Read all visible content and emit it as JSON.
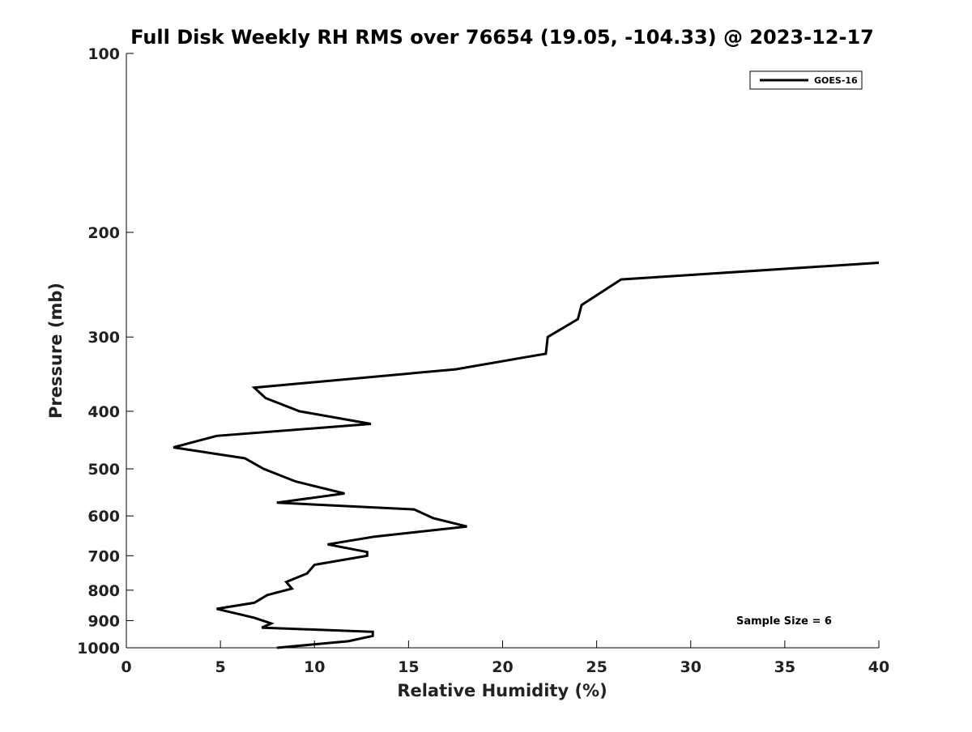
{
  "chart_data": {
    "type": "line",
    "title": "Full Disk Weekly RH RMS over 76654 (19.05, -104.33) @ 2023-12-17",
    "xlabel": "Relative Humidity (%)",
    "ylabel": "Pressure (mb)",
    "xlim": [
      0,
      40
    ],
    "ylim": [
      100,
      1000
    ],
    "y_scale": "log",
    "y_reversed": true,
    "grid": false,
    "legend_position": "top-right",
    "x_ticks": [
      0,
      5,
      10,
      15,
      20,
      25,
      30,
      35,
      40
    ],
    "y_ticks": [
      100,
      200,
      300,
      400,
      500,
      600,
      700,
      800,
      900,
      1000
    ],
    "series": [
      {
        "name": "GOES-16",
        "color": "#000000",
        "points": [
          {
            "x": 40.0,
            "y": 225
          },
          {
            "x": 26.3,
            "y": 240
          },
          {
            "x": 24.2,
            "y": 265
          },
          {
            "x": 24.0,
            "y": 280
          },
          {
            "x": 22.4,
            "y": 300
          },
          {
            "x": 22.3,
            "y": 320
          },
          {
            "x": 17.5,
            "y": 340
          },
          {
            "x": 6.8,
            "y": 365
          },
          {
            "x": 7.4,
            "y": 380
          },
          {
            "x": 9.2,
            "y": 400
          },
          {
            "x": 13.0,
            "y": 420
          },
          {
            "x": 4.8,
            "y": 440
          },
          {
            "x": 2.5,
            "y": 460
          },
          {
            "x": 6.3,
            "y": 480
          },
          {
            "x": 7.3,
            "y": 500
          },
          {
            "x": 9.0,
            "y": 525
          },
          {
            "x": 11.6,
            "y": 550
          },
          {
            "x": 8.0,
            "y": 570
          },
          {
            "x": 15.3,
            "y": 585
          },
          {
            "x": 16.3,
            "y": 605
          },
          {
            "x": 18.1,
            "y": 625
          },
          {
            "x": 13.2,
            "y": 650
          },
          {
            "x": 10.7,
            "y": 670
          },
          {
            "x": 12.8,
            "y": 690
          },
          {
            "x": 12.8,
            "y": 700
          },
          {
            "x": 10.0,
            "y": 725
          },
          {
            "x": 9.6,
            "y": 750
          },
          {
            "x": 8.5,
            "y": 775
          },
          {
            "x": 8.8,
            "y": 795
          },
          {
            "x": 7.5,
            "y": 815
          },
          {
            "x": 6.8,
            "y": 840
          },
          {
            "x": 4.8,
            "y": 860
          },
          {
            "x": 6.8,
            "y": 890
          },
          {
            "x": 7.7,
            "y": 910
          },
          {
            "x": 7.2,
            "y": 925
          },
          {
            "x": 13.1,
            "y": 940
          },
          {
            "x": 13.1,
            "y": 955
          },
          {
            "x": 11.8,
            "y": 975
          },
          {
            "x": 8.0,
            "y": 1000
          }
        ]
      }
    ],
    "annotations": [
      "Sample Size = 6"
    ]
  }
}
